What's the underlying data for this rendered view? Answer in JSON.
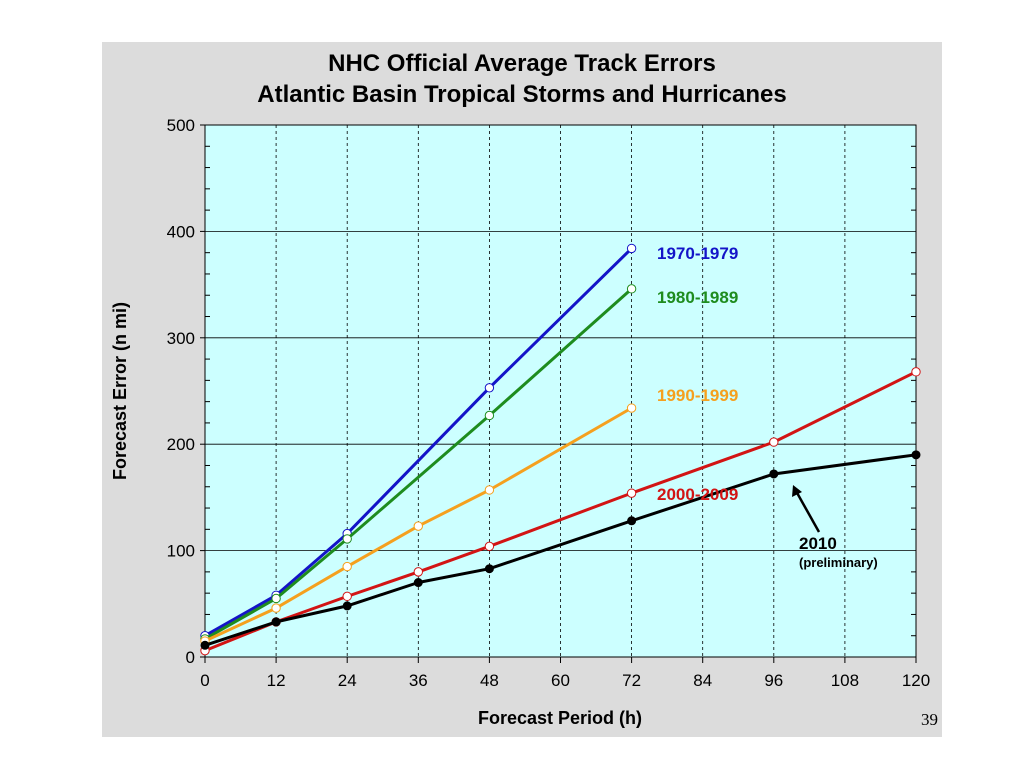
{
  "chart_data": {
    "type": "line",
    "title": [
      "NHC Official Average Track Errors",
      "Atlantic Basin Tropical Storms and Hurricanes"
    ],
    "xlabel": "Forecast Period (h)",
    "ylabel": "Forecast Error (n mi)",
    "xlim": [
      0,
      120
    ],
    "ylim": [
      0,
      500
    ],
    "xticks": [
      0,
      12,
      24,
      36,
      48,
      60,
      72,
      84,
      96,
      108,
      120
    ],
    "yticks": [
      0,
      100,
      200,
      300,
      400,
      500
    ],
    "grid": true,
    "series": [
      {
        "name": "1970-1979",
        "color": "#1414c8",
        "marker": "open",
        "x": [
          0,
          12,
          24,
          48,
          72
        ],
        "y": [
          20,
          58,
          116,
          253,
          384
        ]
      },
      {
        "name": "1980-1989",
        "color": "#1e8c1e",
        "marker": "open",
        "x": [
          0,
          12,
          24,
          48,
          72
        ],
        "y": [
          17,
          55,
          111,
          227,
          346
        ]
      },
      {
        "name": "1990-1999",
        "color": "#f5a01e",
        "marker": "open",
        "x": [
          0,
          12,
          24,
          36,
          48,
          72
        ],
        "y": [
          15,
          46,
          85,
          123,
          157,
          234
        ]
      },
      {
        "name": "2000-2009",
        "color": "#d21414",
        "marker": "open",
        "x": [
          0,
          12,
          24,
          36,
          48,
          72,
          96,
          120
        ],
        "y": [
          6,
          33,
          57,
          80,
          104,
          154,
          202,
          268
        ]
      },
      {
        "name": "2010",
        "color": "#000000",
        "marker": "filled",
        "x": [
          0,
          12,
          24,
          36,
          48,
          72,
          96,
          120
        ],
        "y": [
          11,
          33,
          48,
          70,
          83,
          128,
          172,
          190
        ]
      }
    ],
    "annotations": [
      {
        "text": "2010",
        "subtext": "(preliminary)",
        "arrow": true
      }
    ]
  },
  "slide_number": "39"
}
